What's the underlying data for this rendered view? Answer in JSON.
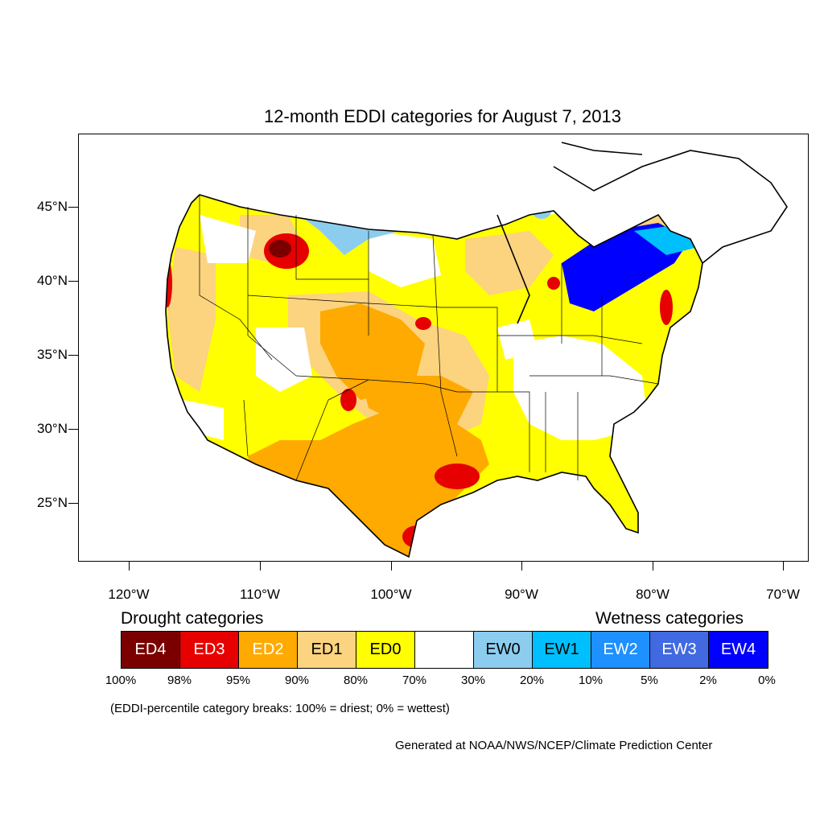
{
  "title": "12-month EDDI categories for August 7, 2013",
  "lat_labels": [
    "45°N",
    "40°N",
    "35°N",
    "30°N",
    "25°N"
  ],
  "lon_labels": [
    "120°W",
    "110°W",
    "100°W",
    "90°W",
    "80°W",
    "70°W"
  ],
  "legend": {
    "drought_heading": "Drought categories",
    "wetness_heading": "Wetness categories",
    "categories": [
      {
        "label": "ED4",
        "color": "#7a0000",
        "text_color": "#ffffff"
      },
      {
        "label": "ED3",
        "color": "#e60000",
        "text_color": "#ffffff"
      },
      {
        "label": "ED2",
        "color": "#ffaa00",
        "text_color": "#ffffff"
      },
      {
        "label": "ED1",
        "color": "#fcd37f",
        "text_color": "#000000"
      },
      {
        "label": "ED0",
        "color": "#ffff00",
        "text_color": "#000000"
      },
      {
        "label": "",
        "color": "#ffffff",
        "text_color": "#000000"
      },
      {
        "label": "EW0",
        "color": "#8ccdef",
        "text_color": "#000000"
      },
      {
        "label": "EW1",
        "color": "#00bfff",
        "text_color": "#000000"
      },
      {
        "label": "EW2",
        "color": "#1e90ff",
        "text_color": "#ffffff"
      },
      {
        "label": "EW3",
        "color": "#4169e1",
        "text_color": "#ffffff"
      },
      {
        "label": "EW4",
        "color": "#0000ff",
        "text_color": "#ffffff"
      }
    ],
    "percent_breaks": [
      "100%",
      "98%",
      "95%",
      "90%",
      "80%",
      "70%",
      "30%",
      "20%",
      "10%",
      "5%",
      "2%",
      "0%"
    ]
  },
  "note": "(EDDI-percentile category breaks: 100% = driest; 0% = wettest)",
  "credit": "Generated at NOAA/NWS/NCEP/Climate Prediction Center"
}
